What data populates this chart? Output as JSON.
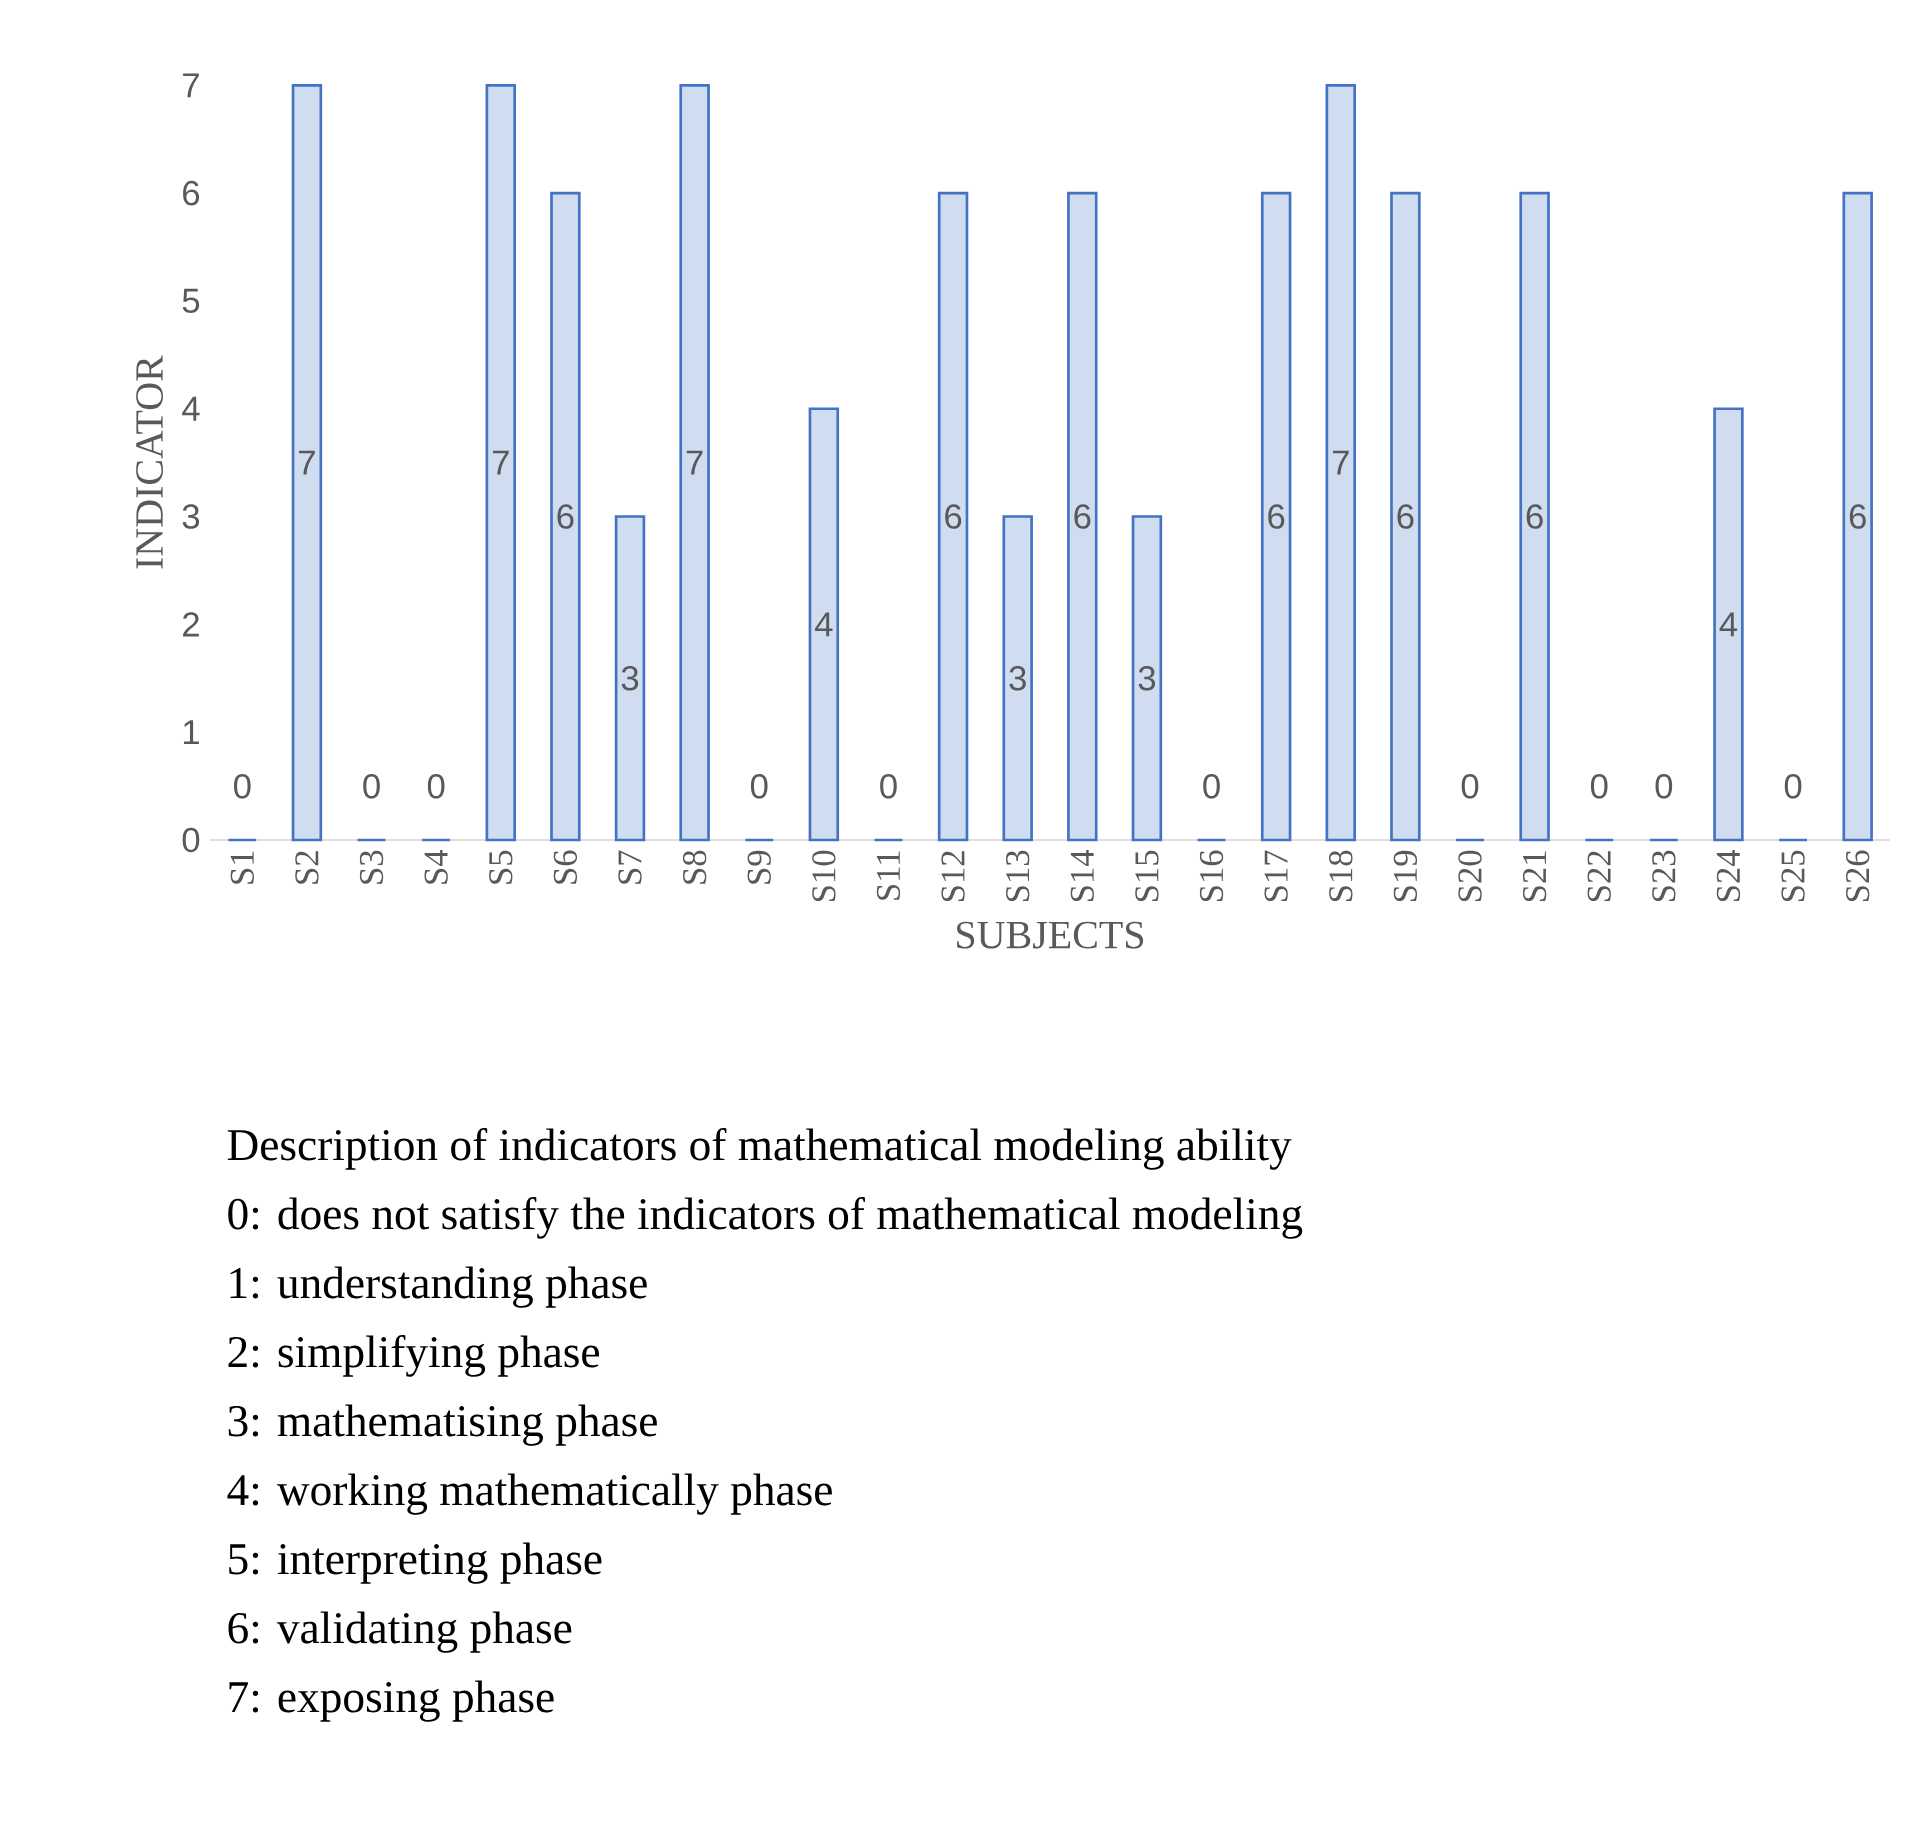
{
  "chart_data": {
    "type": "bar",
    "xlabel": "SUBJECTS",
    "ylabel": "INDICATOR",
    "categories": [
      "S1",
      "S2",
      "S3",
      "S4",
      "S5",
      "S6",
      "S7",
      "S8",
      "S9",
      "S10",
      "S11",
      "S12",
      "S13",
      "S14",
      "S15",
      "S16",
      "S17",
      "S18",
      "S19",
      "S20",
      "S21",
      "S22",
      "S23",
      "S24",
      "S25",
      "S26"
    ],
    "values": [
      0,
      7,
      0,
      0,
      7,
      6,
      3,
      7,
      0,
      4,
      0,
      6,
      3,
      6,
      3,
      0,
      6,
      7,
      6,
      0,
      6,
      0,
      0,
      4,
      0,
      6
    ],
    "color": "#4472c4",
    "ylim": [
      0,
      7
    ],
    "yticks": [
      0,
      1,
      2,
      3,
      4,
      5,
      6,
      7
    ],
    "data_labels": true,
    "annotations": [
      "Description of indicators of mathematical modeling ability",
      "0: does not satisfy the indicators of mathematical modeling",
      "1: understanding phase",
      "2: simplifying phase",
      "3: mathematising phase",
      "4: working mathematically phase",
      "5: interpreting phase",
      "6: validating phase",
      "7: exposing phase"
    ]
  }
}
